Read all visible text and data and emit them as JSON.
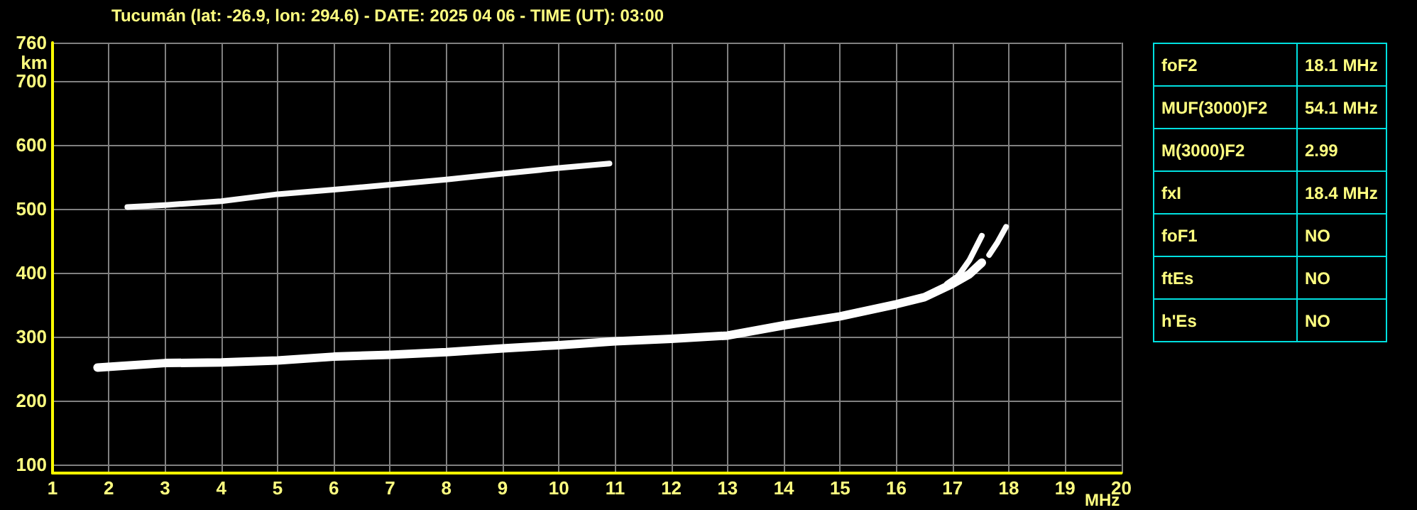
{
  "chart_data": [
    {
      "type": "line",
      "title": "Tucumán (lat: -26.9, lon: 294.6) - DATE: 2025 04 06 - TIME (UT): 03:00",
      "xlabel": "MHz",
      "ylabel": "km",
      "xlim": [
        1,
        20
      ],
      "xticks": [
        1,
        2,
        3,
        4,
        5,
        6,
        7,
        8,
        9,
        10,
        11,
        12,
        13,
        14,
        15,
        16,
        17,
        18,
        19,
        20
      ],
      "ylim": [
        87,
        760
      ],
      "yticks": [
        100,
        200,
        300,
        400,
        500,
        600,
        700,
        760
      ],
      "grid": true,
      "marker": "none",
      "line_style": "solid",
      "series": [
        {
          "color": "#ffffff",
          "x": [
            1.8,
            3,
            4,
            5,
            6,
            7,
            8,
            9,
            10,
            11,
            12,
            13,
            14,
            15,
            16,
            16.5,
            17,
            17.3,
            17.52
          ],
          "values": [
            252,
            259,
            260,
            263,
            269,
            272,
            276,
            282,
            287,
            293,
            297,
            302,
            318,
            332,
            351,
            362,
            383,
            398,
            416
          ]
        },
        {
          "color": "#fdfdfd",
          "x": [
            16.9,
            17.1,
            17.3,
            17.52
          ],
          "values": [
            383,
            395,
            420,
            458
          ]
        },
        {
          "color": "#fbfbfb",
          "x": [
            17.65,
            17.8,
            17.95
          ],
          "values": [
            428,
            448,
            472
          ]
        },
        {
          "color": "#f9f9f9",
          "x": [
            2.33,
            3,
            4,
            5,
            6,
            7,
            8,
            9,
            10,
            10.9
          ],
          "values": [
            503,
            506,
            512,
            523,
            530,
            538,
            546,
            555,
            564,
            571
          ]
        }
      ]
    },
    {
      "type": "other",
      "annotations": [
        "foF2",
        "18.1 MHz",
        "MUF(3000)F2",
        "54.1 MHz",
        "M(3000)F2",
        "2.99",
        "fxI",
        "18.4 MHz",
        "foF1",
        "NO",
        "ftEs",
        "NO",
        "h'Es",
        "NO"
      ]
    }
  ]
}
